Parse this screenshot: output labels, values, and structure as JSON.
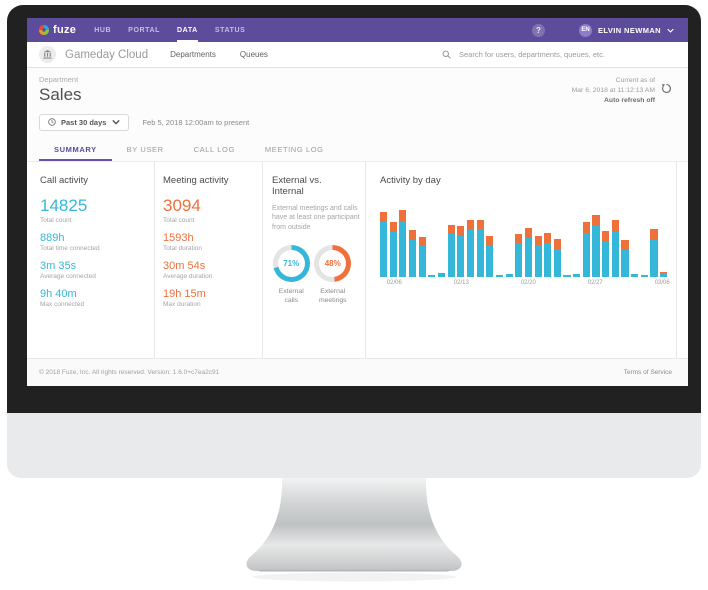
{
  "nav": {
    "logo_text": "fuze",
    "items": [
      {
        "label": "HUB",
        "active": false
      },
      {
        "label": "PORTAL",
        "active": false
      },
      {
        "label": "DATA",
        "active": true
      },
      {
        "label": "STATUS",
        "active": false
      }
    ],
    "help_text": "?",
    "user": {
      "initials": "EN",
      "name": "ELVIN NEWMAN"
    }
  },
  "subnav": {
    "org_name": "Gameday Cloud",
    "links": [
      {
        "label": "Departments"
      },
      {
        "label": "Queues"
      }
    ],
    "search_placeholder": "Search for users, departments, queues, etc."
  },
  "header": {
    "entity_type": "Department",
    "entity_name": "Sales",
    "range_button_label": "Past 30 days",
    "range_text": "Feb 5, 2018 12:00am to present",
    "current_as_of_line1": "Current as of",
    "current_as_of_line2": "Mar 6, 2018 at 11:12:13 AM",
    "auto_refresh": "Auto refresh off"
  },
  "tabs": [
    {
      "label": "SUMMARY",
      "active": true
    },
    {
      "label": "BY USER",
      "active": false
    },
    {
      "label": "CALL LOG",
      "active": false
    },
    {
      "label": "MEETING LOG",
      "active": false
    }
  ],
  "call_activity": {
    "title": "Call activity",
    "color": "#35b7d9",
    "stats": [
      {
        "value": "14825",
        "label": "Total count",
        "big": true
      },
      {
        "value": "889h",
        "label": "Total time connected",
        "big": false
      },
      {
        "value": "3m 35s",
        "label": "Average connected",
        "big": false
      },
      {
        "value": "9h 40m",
        "label": "Max connected",
        "big": false
      }
    ]
  },
  "meeting_activity": {
    "title": "Meeting activity",
    "color": "#f0703c",
    "stats": [
      {
        "value": "3094",
        "label": "Total count",
        "big": true
      },
      {
        "value": "1593h",
        "label": "Total duration",
        "big": false
      },
      {
        "value": "30m 54s",
        "label": "Average duration",
        "big": false
      },
      {
        "value": "19h 15m",
        "label": "Max duration",
        "big": false
      }
    ]
  },
  "external_vs_internal": {
    "title": "External vs. Internal",
    "description": "External meetings and calls have at least one participant from outside",
    "track_color": "#e4e4e4",
    "donuts": [
      {
        "pct": 71,
        "label": "External calls",
        "color": "#35b7d9"
      },
      {
        "pct": 48,
        "label": "External meetings",
        "color": "#f0703c"
      }
    ]
  },
  "chart_data": {
    "type": "bar",
    "stacked": true,
    "title": "Activity by day",
    "x": [
      "02/05",
      "02/06",
      "02/07",
      "02/08",
      "02/09",
      "02/10",
      "02/11",
      "02/12",
      "02/13",
      "02/14",
      "02/15",
      "02/16",
      "02/17",
      "02/18",
      "02/19",
      "02/20",
      "02/21",
      "02/22",
      "02/23",
      "02/24",
      "02/25",
      "02/26",
      "02/27",
      "02/28",
      "03/01",
      "03/02",
      "03/03",
      "03/04",
      "03/05",
      "03/06"
    ],
    "series": [
      {
        "name": "Calls",
        "color": "#35b7d9",
        "values": [
          70,
          58,
          72,
          48,
          40,
          3,
          5,
          55,
          53,
          60,
          62,
          40,
          3,
          4,
          44,
          50,
          41,
          44,
          36,
          3,
          4,
          57,
          65,
          46,
          58,
          34,
          4,
          2,
          48,
          5
        ]
      },
      {
        "name": "Meetings",
        "color": "#f0703c",
        "values": [
          13,
          12,
          14,
          12,
          11,
          0,
          0,
          12,
          12,
          13,
          11,
          12,
          0,
          0,
          11,
          13,
          11,
          12,
          13,
          0,
          0,
          14,
          15,
          13,
          15,
          13,
          0,
          0,
          13,
          1
        ]
      }
    ],
    "tick_labels": [
      "02/06",
      "02/13",
      "02/20",
      "02/27",
      "03/06"
    ],
    "tick_indices": [
      1,
      8,
      15,
      22,
      29
    ],
    "ylim": [
      0,
      100
    ],
    "grid": false,
    "legend": "none",
    "note_units": "values are relative bar heights (percent of plot height); chart shows no y-axis"
  },
  "footer": {
    "copyright": "© 2018 Fuze, Inc. All rights reserved. Version: 1.6.0+c7ea2c91",
    "terms": "Terms of Service"
  }
}
